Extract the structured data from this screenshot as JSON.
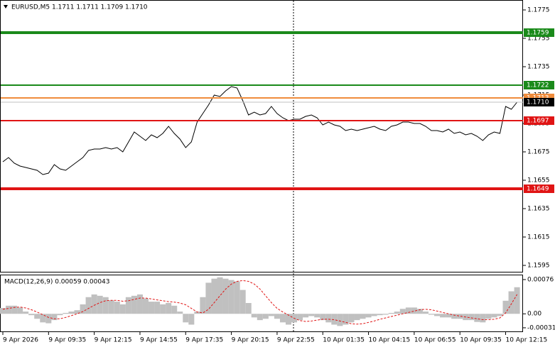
{
  "chart_data": [
    {
      "type": "line",
      "title": "EURUSD,M5  1.1711 1.1711 1.1709 1.1710",
      "categories": [
        "9 Apr 2026",
        null,
        null,
        null,
        null,
        null,
        null,
        null,
        "9 Apr 09:35",
        null,
        null,
        null,
        null,
        null,
        null,
        null,
        "9 Apr 12:15",
        null,
        null,
        null,
        null,
        null,
        null,
        null,
        "9 Apr 14:55",
        null,
        null,
        null,
        null,
        null,
        null,
        null,
        "9 Apr 17:35",
        null,
        null,
        null,
        null,
        null,
        null,
        null,
        "9 Apr 20:15",
        null,
        null,
        null,
        null,
        null,
        null,
        null,
        "9 Apr 22:55",
        null,
        null,
        null,
        null,
        null,
        null,
        null,
        "10 Apr 01:35",
        null,
        null,
        null,
        null,
        null,
        null,
        null,
        "10 Apr 04:15",
        null,
        null,
        null,
        null,
        null,
        null,
        null,
        "10 Apr 06:55",
        null,
        null,
        null,
        null,
        null,
        null,
        null,
        "10 Apr 09:35",
        null,
        null,
        null,
        null,
        null,
        null,
        null,
        "10 Apr 12:15",
        null,
        null
      ],
      "series": [
        {
          "color": "#000000",
          "values": [
            1.1668,
            1.1671,
            1.1667,
            1.1665,
            1.1664,
            1.1663,
            1.1662,
            1.1659,
            1.166,
            1.1666,
            1.1663,
            1.1662,
            1.1665,
            1.1668,
            1.1671,
            1.1676,
            1.1677,
            1.1677,
            1.1678,
            1.1677,
            1.1678,
            1.1675,
            1.1682,
            1.1689,
            1.1686,
            1.1683,
            1.1687,
            1.1685,
            1.1688,
            1.1693,
            1.1688,
            1.1684,
            1.1678,
            1.1682,
            1.1696,
            1.1702,
            1.1708,
            1.1715,
            1.1714,
            1.1718,
            1.1721,
            1.172,
            1.1711,
            1.1701,
            1.1703,
            1.1701,
            1.1702,
            1.1707,
            1.1702,
            1.1699,
            1.1697,
            1.1698,
            1.1698,
            1.17,
            1.1701,
            1.1699,
            1.1694,
            1.1696,
            1.1694,
            1.1693,
            1.169,
            1.1691,
            1.169,
            1.1691,
            1.1692,
            1.1693,
            1.1691,
            1.169,
            1.1693,
            1.1694,
            1.1696,
            1.1696,
            1.1695,
            1.1695,
            1.1693,
            1.169,
            1.169,
            1.1689,
            1.1691,
            1.1688,
            1.1689,
            1.1687,
            1.1688,
            1.1686,
            1.1683,
            1.1687,
            1.1689,
            1.1688,
            1.1707,
            1.1705,
            1.171
          ]
        }
      ],
      "ylim": [
        1.15905,
        1.1782
      ],
      "yticks": [
        1.1775,
        1.1755,
        1.1735,
        1.1715,
        1.1695,
        1.1675,
        1.1655,
        1.1635,
        1.1615,
        1.1595
      ],
      "levels": [
        {
          "value": 1.1759,
          "color": "#1a8a1a",
          "thick": true
        },
        {
          "value": 1.1722,
          "color": "#1a8a1a",
          "thick": false
        },
        {
          "value": 1.1713,
          "color": "#f08c3c",
          "thick": false
        },
        {
          "value": 1.1697,
          "color": "#e01414",
          "thick": false
        },
        {
          "value": 1.1649,
          "color": "#e01414",
          "thick": true
        }
      ],
      "last_price": {
        "value": 1.171,
        "label": "1.1710"
      }
    },
    {
      "type": "bar",
      "title": "MACD(12,26,9) 0.00059 0.00043",
      "series": [
        {
          "type": "bar",
          "color": "#c0c0c0",
          "values": [
            0.00013,
            0.00018,
            0.00018,
            0.00014,
            5e-05,
            -3e-05,
            -0.00011,
            -0.00019,
            -0.00021,
            -0.00014,
            -3e-05,
            2e-05,
            5e-05,
            8e-05,
            0.00021,
            0.00037,
            0.00043,
            0.0004,
            0.00037,
            0.0003,
            0.00027,
            0.00021,
            0.00037,
            0.0004,
            0.00043,
            0.00034,
            0.00027,
            0.00027,
            0.00021,
            0.00024,
            0.00018,
            5e-05,
            -0.00019,
            -0.00024,
            5e-05,
            0.00037,
            0.00069,
            0.00078,
            0.00081,
            0.00078,
            0.00075,
            0.00072,
            0.00053,
            0.00024,
            -8e-05,
            -0.00014,
            -0.00011,
            -5e-05,
            -0.00011,
            -0.00019,
            -0.00024,
            -0.00019,
            -0.00014,
            -8e-05,
            -5e-05,
            -8e-05,
            -0.00014,
            -0.00019,
            -0.00024,
            -0.00027,
            -0.00024,
            -0.00019,
            -0.00014,
            -0.00011,
            -8e-05,
            -5e-05,
            -3e-05,
            -2e-05,
            2e-05,
            5e-05,
            0.00011,
            0.00014,
            0.00014,
            0.00011,
            5e-05,
            -2e-05,
            -5e-05,
            -8e-05,
            -8e-05,
            -0.00011,
            -0.00011,
            -0.00014,
            -0.00014,
            -0.00018,
            -0.00019,
            -0.00011,
            -8e-05,
            -5e-05,
            0.00029,
            0.0005,
            0.00059
          ]
        },
        {
          "type": "line",
          "color": "#e01414",
          "dashed": true,
          "values": [
            0.0001,
            0.00012,
            0.00014,
            0.00015,
            0.00013,
            9e-05,
            4e-05,
            -2e-05,
            -8e-05,
            -0.00011,
            -0.00011,
            -8e-05,
            -4e-05,
            0,
            5e-05,
            0.00012,
            0.00019,
            0.00025,
            0.00029,
            0.0003,
            0.0003,
            0.00028,
            0.00029,
            0.00032,
            0.00035,
            0.00035,
            0.00033,
            0.00031,
            0.00029,
            0.00027,
            0.00026,
            0.00024,
            0.0002,
            0.00012,
            4e-05,
            2e-05,
            0.0001,
            0.00025,
            0.0004,
            0.00055,
            0.00066,
            0.00072,
            0.00074,
            0.00072,
            0.00066,
            0.00055,
            0.0004,
            0.00025,
            0.00012,
            4e-05,
            -3e-05,
            -0.0001,
            -0.00015,
            -0.00017,
            -0.00016,
            -0.00014,
            -0.00012,
            -0.00012,
            -0.00013,
            -0.00016,
            -0.00019,
            -0.00022,
            -0.00023,
            -0.00022,
            -0.00019,
            -0.00016,
            -0.00012,
            -9e-05,
            -6e-05,
            -3e-05,
            0,
            3e-05,
            6e-05,
            9e-05,
            0.0001,
            9e-05,
            6e-05,
            3e-05,
            0,
            -3e-05,
            -5e-05,
            -7e-05,
            -9e-05,
            -0.00011,
            -0.00013,
            -0.00013,
            -0.00012,
            -9e-05,
            2e-05,
            0.00022,
            0.00043
          ]
        }
      ],
      "ylim": [
        -0.00039,
        0.00087
      ],
      "yticks": [
        0.00076,
        {
          "value": 0,
          "label": "0.00"
        },
        -0.00031
      ]
    }
  ]
}
